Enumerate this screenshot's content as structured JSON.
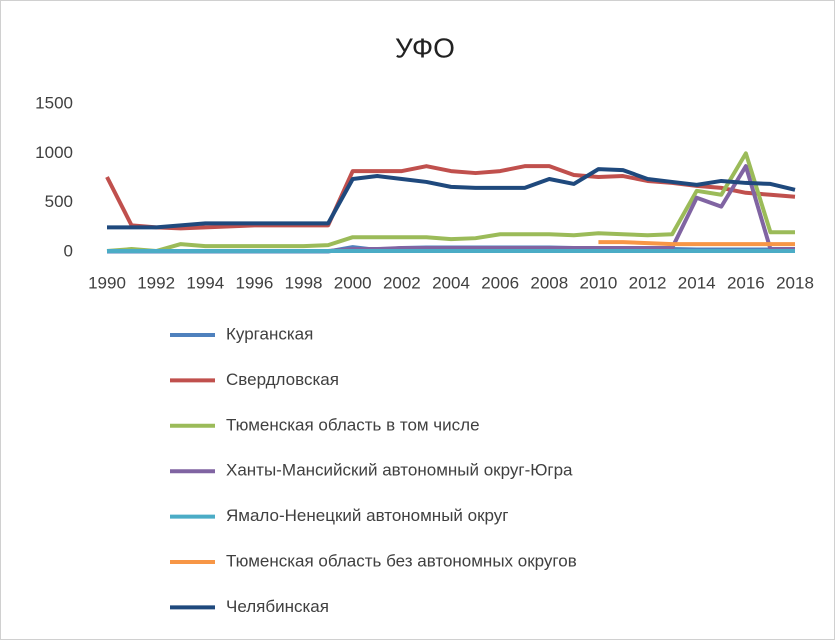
{
  "chart_data": {
    "type": "line",
    "title": "УФО",
    "x": [
      1990,
      1991,
      1992,
      1993,
      1994,
      1995,
      1996,
      1997,
      1998,
      1999,
      2000,
      2001,
      2002,
      2003,
      2004,
      2005,
      2006,
      2007,
      2008,
      2009,
      2010,
      2011,
      2012,
      2013,
      2014,
      2015,
      2016,
      2017,
      2018
    ],
    "xlim": [
      1990,
      2018
    ],
    "xticks": [
      1990,
      1992,
      1994,
      1996,
      1998,
      2000,
      2002,
      2004,
      2006,
      2008,
      2010,
      2012,
      2014,
      2016,
      2018
    ],
    "ylim": [
      0,
      1500
    ],
    "yticks": [
      0,
      500,
      1000,
      1500
    ],
    "grid": false,
    "legend": "bottom",
    "series": [
      {
        "name": "Курганская",
        "color": "#4f81bd",
        "values": [
          5,
          5,
          5,
          5,
          5,
          5,
          5,
          5,
          5,
          5,
          50,
          20,
          40,
          45,
          45,
          45,
          45,
          45,
          45,
          40,
          35,
          30,
          30,
          30,
          25,
          25,
          25,
          25,
          25
        ]
      },
      {
        "name": "Свердловская",
        "color": "#c0504d",
        "values": [
          760,
          270,
          250,
          240,
          250,
          260,
          270,
          270,
          270,
          270,
          820,
          820,
          820,
          870,
          820,
          800,
          820,
          870,
          870,
          780,
          760,
          770,
          720,
          700,
          670,
          650,
          600,
          580,
          560
        ]
      },
      {
        "name": "Тюменская область в том числе",
        "color": "#9bbb59",
        "values": [
          10,
          30,
          10,
          80,
          60,
          60,
          60,
          60,
          60,
          70,
          150,
          150,
          150,
          150,
          130,
          140,
          180,
          180,
          180,
          170,
          190,
          180,
          170,
          180,
          620,
          580,
          1000,
          200,
          200
        ]
      },
      {
        "name": "Ханты-Мансийский автономный округ-Югра",
        "color": "#8064a2",
        "values": [
          10,
          10,
          10,
          10,
          10,
          10,
          10,
          10,
          10,
          10,
          30,
          30,
          40,
          40,
          40,
          40,
          40,
          40,
          40,
          40,
          40,
          40,
          40,
          40,
          550,
          460,
          870,
          30,
          30
        ]
      },
      {
        "name": "Ямало-Ненецкий автономный округ",
        "color": "#4bacc6",
        "values": [
          10,
          10,
          10,
          10,
          10,
          10,
          10,
          10,
          10,
          10,
          10,
          10,
          10,
          10,
          10,
          10,
          10,
          10,
          10,
          10,
          10,
          10,
          10,
          10,
          10,
          10,
          10,
          10,
          10
        ]
      },
      {
        "name": "Тюменская область без автономных округов",
        "color": "#f79646",
        "values": [
          null,
          null,
          null,
          null,
          null,
          null,
          null,
          null,
          null,
          null,
          null,
          null,
          null,
          null,
          null,
          null,
          null,
          null,
          null,
          null,
          100,
          100,
          90,
          80,
          80,
          80,
          80,
          80,
          80
        ]
      },
      {
        "name": "Челябинская",
        "color": "#1f497d",
        "values": [
          250,
          250,
          250,
          270,
          290,
          290,
          290,
          290,
          290,
          290,
          740,
          770,
          740,
          710,
          660,
          650,
          650,
          650,
          740,
          690,
          840,
          830,
          740,
          710,
          680,
          720,
          700,
          690,
          630
        ]
      }
    ]
  }
}
